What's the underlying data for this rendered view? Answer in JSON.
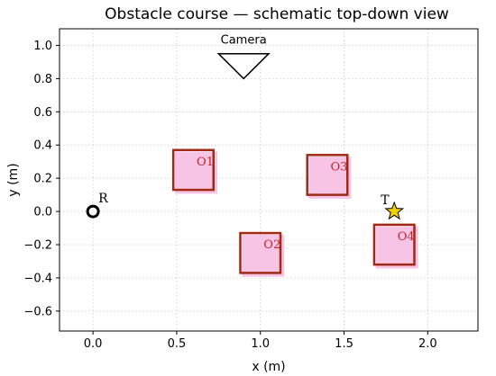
{
  "chart_data": {
    "type": "scatter",
    "title": "Obstacle course — schematic top-down view",
    "xlabel": "x (m)",
    "ylabel": "y (m)",
    "xlim": [
      -0.2,
      2.3
    ],
    "ylim": [
      -0.72,
      1.1
    ],
    "x_ticks": [
      0.0,
      0.5,
      1.0,
      1.5,
      2.0
    ],
    "x_tick_labels": [
      "0.0",
      "0.5",
      "1.0",
      "1.5",
      "2.0"
    ],
    "y_ticks": [
      -0.6,
      -0.4,
      -0.2,
      0.0,
      0.2,
      0.4,
      0.6,
      0.8,
      1.0
    ],
    "y_tick_labels": [
      "−0.6",
      "−0.4",
      "−0.2",
      "0.0",
      "0.2",
      "0.4",
      "0.6",
      "0.8",
      "1.0"
    ],
    "grid": true,
    "camera": {
      "label": "Camera",
      "x": 0.9,
      "y_apex": 0.8,
      "y_top": 0.95,
      "half_width": 0.15
    },
    "robot": {
      "label": "R",
      "x": 0.0,
      "y": 0.0
    },
    "target": {
      "label": "T",
      "x": 1.8,
      "y": 0.0
    },
    "obstacles": [
      {
        "label": "O1",
        "x": 0.6,
        "y": 0.25,
        "size": 0.24
      },
      {
        "label": "O2",
        "x": 1.0,
        "y": -0.25,
        "size": 0.24
      },
      {
        "label": "O3",
        "x": 1.4,
        "y": 0.22,
        "size": 0.24
      },
      {
        "label": "O4",
        "x": 1.8,
        "y": -0.2,
        "size": 0.24
      }
    ],
    "colors": {
      "obstacle_edge": "#a12a14",
      "obstacle_label": "#c0282d",
      "obstacle_shadow": "#f8c4e6",
      "target_fill": "#f5d000",
      "grid": "#c8c8c8"
    }
  }
}
